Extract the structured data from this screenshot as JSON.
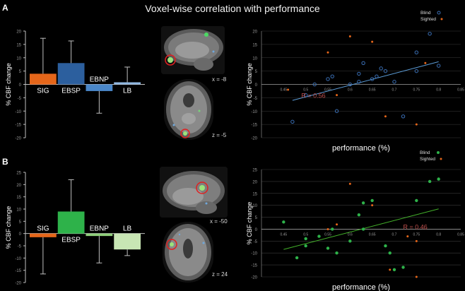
{
  "title": "Voxel-wise correlation with performance",
  "panels": [
    {
      "letter": "A",
      "brain_coords": [
        "x = -8",
        "z = -5"
      ]
    },
    {
      "letter": "B",
      "brain_coords": [
        "x = -50",
        "z = 24"
      ]
    }
  ],
  "colors": {
    "sig": "#e5661a",
    "ebsp_a": "#2c5f9e",
    "ebsp_b": "#2eb24a",
    "ebnp_a": "#4a87c9",
    "ebnp_b": "#8fd07a",
    "lb_a": "#8fb6e0",
    "lb_b": "#c8e6b4",
    "blind_a": "#3a6fb5",
    "blind_b": "#2eb24a",
    "sighted": "#e5661a",
    "fit_a": "#5b9bd5",
    "fit_b": "#43b02a",
    "r_text": "#c0504d",
    "grid": "#3a3a3a"
  },
  "chart_data": [
    {
      "type": "bar",
      "panel": "A",
      "ylabel": "% CBF change",
      "ylim": [
        -20,
        20
      ],
      "yticks": [
        -20,
        -15,
        -10,
        -5,
        0,
        5,
        10,
        15,
        20
      ],
      "categories": [
        "SIG",
        "EBSP",
        "EBNP",
        "LB"
      ],
      "values": [
        4,
        8,
        -2.5,
        0.8
      ],
      "errors": [
        13.3,
        8.3,
        8.3,
        5.7
      ],
      "error_direction": [
        "up",
        "up",
        "down",
        "up"
      ]
    },
    {
      "type": "scatter",
      "panel": "A",
      "xlabel": "performance (%)",
      "ylabel": "% CBF change",
      "xlim": [
        0.4,
        0.85
      ],
      "ylim": [
        -20,
        20
      ],
      "xticks": [
        0.45,
        0.5,
        0.55,
        0.6,
        0.65,
        0.7,
        0.75,
        0.8,
        0.85
      ],
      "yticks": [
        -20,
        -15,
        -10,
        -5,
        0,
        5,
        10,
        15,
        20
      ],
      "legend": [
        "Blind",
        "Sighted"
      ],
      "annotation": "R = 0.56",
      "series": [
        {
          "name": "Blind",
          "x": [
            0.47,
            0.5,
            0.52,
            0.55,
            0.56,
            0.57,
            0.6,
            0.62,
            0.62,
            0.63,
            0.65,
            0.66,
            0.67,
            0.68,
            0.7,
            0.72,
            0.75,
            0.75,
            0.78,
            0.8
          ],
          "y": [
            -14,
            -4,
            0,
            2,
            3,
            -10,
            0,
            4,
            1,
            8,
            2,
            3,
            6,
            5,
            1,
            -12,
            5,
            12,
            19,
            7
          ]
        },
        {
          "name": "Sighted",
          "x": [
            0.46,
            0.55,
            0.57,
            0.6,
            0.65,
            0.68,
            0.75,
            0.77
          ],
          "y": [
            -2,
            12,
            -4,
            18,
            16,
            -12,
            -15,
            8
          ]
        }
      ],
      "fit_line": {
        "x": [
          0.47,
          0.8
        ],
        "y": [
          -6,
          8.5
        ]
      }
    },
    {
      "type": "bar",
      "panel": "B",
      "ylabel": "% CBF change",
      "ylim": [
        -20,
        25
      ],
      "yticks": [
        -20,
        -15,
        -10,
        -5,
        0,
        5,
        10,
        15,
        20,
        25
      ],
      "categories": [
        "SIG",
        "EBSP",
        "EBNP",
        "LB"
      ],
      "values": [
        -1.5,
        9,
        -1,
        -6.5
      ],
      "errors": [
        15,
        13,
        11,
        2.5
      ],
      "error_direction": [
        "down",
        "up",
        "down",
        "down"
      ]
    },
    {
      "type": "scatter",
      "panel": "B",
      "xlabel": "performance (%)",
      "ylabel": "% CBF change",
      "xlim": [
        0.4,
        0.85
      ],
      "ylim": [
        -20,
        25
      ],
      "xticks": [
        0.45,
        0.5,
        0.55,
        0.6,
        0.65,
        0.7,
        0.75,
        0.8,
        0.85
      ],
      "yticks": [
        -20,
        -15,
        -10,
        -5,
        0,
        5,
        10,
        15,
        20,
        25
      ],
      "legend": [
        "Blind",
        "Sighted"
      ],
      "annotation": "R = 0.46",
      "series": [
        {
          "name": "Blind",
          "x": [
            0.45,
            0.48,
            0.5,
            0.5,
            0.53,
            0.55,
            0.56,
            0.57,
            0.6,
            0.62,
            0.63,
            0.63,
            0.65,
            0.68,
            0.69,
            0.7,
            0.72,
            0.75,
            0.78,
            0.8
          ],
          "y": [
            3,
            -12,
            -4,
            -7,
            -3,
            -8,
            0,
            -10,
            -5,
            6,
            11,
            0,
            12,
            -7,
            -10,
            -17,
            -16,
            12,
            20,
            21
          ]
        },
        {
          "name": "Sighted",
          "x": [
            0.55,
            0.57,
            0.6,
            0.65,
            0.69,
            0.73,
            0.75,
            0.75
          ],
          "y": [
            0,
            2,
            19,
            10,
            -17,
            -3,
            -20,
            -5
          ]
        }
      ],
      "fit_line": {
        "x": [
          0.45,
          0.8
        ],
        "y": [
          -8.5,
          8.5
        ]
      }
    }
  ]
}
